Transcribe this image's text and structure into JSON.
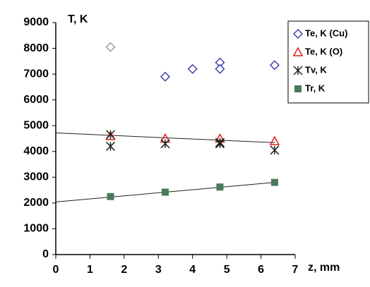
{
  "chart_data": {
    "type": "scatter",
    "ylabel": "T, K",
    "xlabel": "z, mm",
    "xlim": [
      0,
      7
    ],
    "xticks": [
      0,
      1,
      2,
      3,
      4,
      5,
      6,
      7
    ],
    "ylim": [
      0,
      9000
    ],
    "yticks": [
      0,
      1000,
      2000,
      3000,
      4000,
      5000,
      6000,
      7000,
      8000,
      9000
    ],
    "legend": "top-right",
    "series": [
      {
        "name": "Te, K (Cu)",
        "color": "#2a2aa8",
        "marker": "diamond",
        "x": [
          3.2,
          4,
          4.8,
          4.8,
          6.4
        ],
        "values": [
          6900,
          7200,
          7450,
          7200,
          7350
        ]
      },
      {
        "name": "Te, K (O)",
        "color": "#e02010",
        "marker": "triangle",
        "x": [
          1.6,
          3.2,
          4.8,
          6.4
        ],
        "values": [
          4600,
          4500,
          4500,
          4400
        ]
      },
      {
        "name": "Tv, K",
        "color": "#202020",
        "marker": "star",
        "x": [
          1.6,
          1.6,
          3.2,
          4.8,
          4.8,
          6.4
        ],
        "values": [
          4650,
          4200,
          4300,
          4350,
          4300,
          4050
        ]
      },
      {
        "name": "Tr, K",
        "color": "#4a7a5a",
        "marker": "square",
        "x": [
          1.6,
          3.2,
          4.8,
          6.4
        ],
        "values": [
          2250,
          2420,
          2620,
          2800
        ]
      },
      {
        "color": "#909090",
        "marker": "diamond",
        "x": [
          1.6
        ],
        "values": [
          8050
        ]
      }
    ],
    "trendlines": [
      {
        "color": "#202020",
        "x": [
          0,
          6.4
        ],
        "values": [
          4720,
          4340
        ]
      },
      {
        "color": "#202020",
        "x": [
          0,
          6.4
        ],
        "values": [
          2040,
          2800
        ]
      }
    ]
  }
}
